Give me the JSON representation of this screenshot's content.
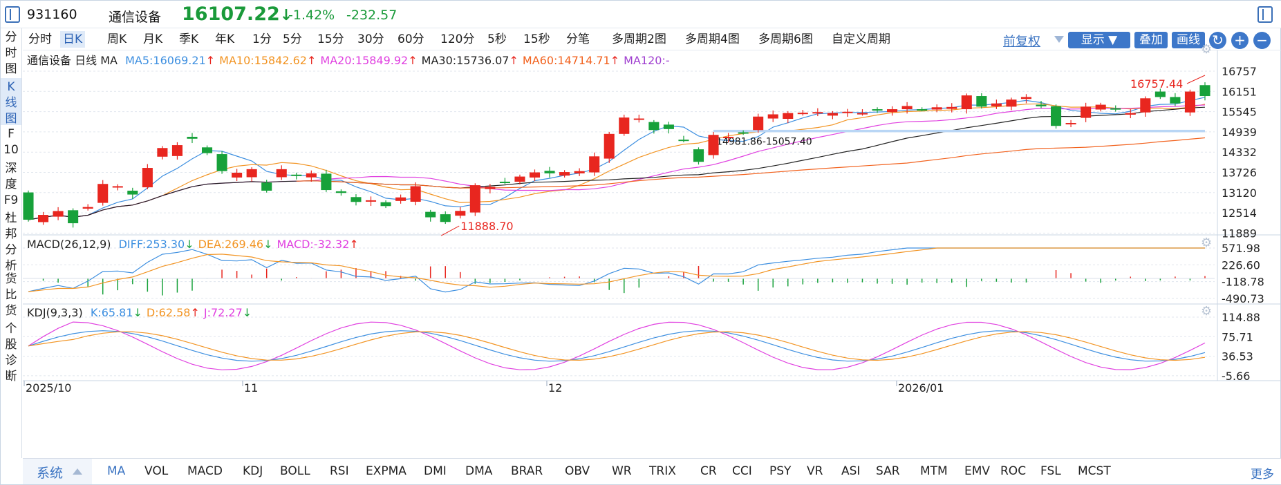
{
  "header": {
    "code": "931160",
    "name": "通信设备",
    "price": "16107.22",
    "price_arrow": "↓",
    "pct_change": "-1.42%",
    "change": "-232.57"
  },
  "side_tabs": [
    {
      "label": "分\n时\n图",
      "active": false
    },
    {
      "label": "K\n线\n图",
      "active": true
    },
    {
      "label": "F\n10",
      "active": false
    },
    {
      "label": "深\n度\nF9",
      "active": false
    },
    {
      "label": "杜\n邦\n分\n析",
      "active": false
    },
    {
      "label": "货\n比\n货",
      "active": false
    },
    {
      "label": "个\n股\n诊\n断",
      "active": false
    }
  ],
  "periods": [
    "分时",
    "日K",
    "周K",
    "月K",
    "季K",
    "年K",
    "1分",
    "5分",
    "15分",
    "30分",
    "60分",
    "120分",
    "5秒",
    "15秒",
    "分笔",
    "多周期2图",
    "多周期4图",
    "多周期6图",
    "自定义周期"
  ],
  "active_period": "日K",
  "toolbar": {
    "fuquan": "前复权",
    "display": "显示",
    "overlay": "叠加",
    "draw": "画线"
  },
  "main_panel": {
    "title_name": "通信设备",
    "title_period": "日线",
    "title_ind": "MA",
    "ma": [
      {
        "label": "MA5:16069.21",
        "arrow": "↑",
        "color": "#3d8fe0"
      },
      {
        "label": "MA10:15842.62",
        "arrow": "↑",
        "color": "#f29423"
      },
      {
        "label": "MA20:15849.92",
        "arrow": "↑",
        "color": "#e040e0"
      },
      {
        "label": "MA30:15736.07",
        "arrow": "↑",
        "color": "#222222"
      },
      {
        "label": "MA60:14714.71",
        "arrow": "↑",
        "color": "#f2621e"
      },
      {
        "label": "MA120:-",
        "arrow": "",
        "color": "#a040d0"
      }
    ],
    "y_ticks": [
      "16757",
      "16151",
      "15545",
      "14939",
      "14332",
      "13726",
      "13120",
      "12514",
      "11889"
    ],
    "annot_high": "16757.44",
    "annot_low": "11888.70",
    "annot_range": "14981.86-15057.40"
  },
  "macd_panel": {
    "title": "MACD(26,12,9)",
    "items": [
      {
        "label": "DIFF:253.30",
        "arrow": "↓",
        "color": "#3d8fe0"
      },
      {
        "label": "DEA:269.46",
        "arrow": "↓",
        "color": "#f29423"
      },
      {
        "label": "MACD:-32.32",
        "arrow": "↑",
        "color": "#e040e0"
      }
    ],
    "y_ticks": [
      "571.98",
      "226.60",
      "-118.78",
      "-490.73"
    ]
  },
  "kdj_panel": {
    "title": "KDJ(9,3,3)",
    "items": [
      {
        "label": "K:65.81",
        "arrow": "↓",
        "color": "#3d8fe0"
      },
      {
        "label": "D:62.58",
        "arrow": "↑",
        "color": "#f29423"
      },
      {
        "label": "J:72.27",
        "arrow": "↓",
        "color": "#e040e0"
      }
    ],
    "y_ticks": [
      "114.88",
      "75.71",
      "36.53",
      "-5.66"
    ]
  },
  "x_labels": [
    "2025/10",
    "11",
    "12",
    "2026/01"
  ],
  "indicators": [
    "MA",
    "VOL",
    "MACD",
    "KDJ",
    "BOLL",
    "RSI",
    "EXPMA",
    "DMI",
    "DMA",
    "BRAR",
    "OBV",
    "WR",
    "TRIX",
    "CR",
    "CCI",
    "PSY",
    "VR",
    "ASI",
    "SAR",
    "MTM",
    "EMV",
    "ROC",
    "FSL",
    "MCST"
  ],
  "active_indicator": "MA",
  "system_label": "系统",
  "more_label": "更多",
  "colors": {
    "up": "#e8261f",
    "down": "#17a13a",
    "accent": "#3d77c9"
  },
  "chart_data": {
    "type": "candlestick",
    "x_axis_labels": [
      "2025/10",
      "11",
      "12",
      "2026/01"
    ],
    "y_range": [
      11889,
      16757
    ],
    "candles_open_close": [
      [
        13105,
        12255
      ],
      [
        12180,
        12405
      ],
      [
        12350,
        12525
      ],
      [
        12550,
        12145
      ],
      [
        12600,
        12650
      ],
      [
        12780,
        13370
      ],
      [
        13280,
        13300
      ],
      [
        13160,
        13040
      ],
      [
        13265,
        13870
      ],
      [
        14220,
        14490
      ],
      [
        14240,
        14580
      ],
      [
        14840,
        14780
      ],
      [
        14510,
        14330
      ],
      [
        14300,
        13770
      ],
      [
        13570,
        13720
      ],
      [
        13580,
        13830
      ],
      [
        13410,
        13160
      ],
      [
        13580,
        13830
      ],
      [
        13660,
        13620
      ],
      [
        13575,
        13700
      ],
      [
        13690,
        13180
      ],
      [
        13140,
        13090
      ],
      [
        12960,
        12810
      ],
      [
        12820,
        12860
      ],
      [
        12800,
        12680
      ],
      [
        12840,
        12950
      ],
      [
        12815,
        13300
      ],
      [
        12500,
        12330
      ],
      [
        12425,
        12185
      ],
      [
        12380,
        12530
      ],
      [
        12480,
        13330
      ],
      [
        13210,
        13280
      ],
      [
        13440,
        13420
      ],
      [
        13440,
        13600
      ],
      [
        13570,
        13730
      ],
      [
        13780,
        13700
      ],
      [
        13630,
        13740
      ],
      [
        13700,
        13770
      ],
      [
        13730,
        14230
      ],
      [
        14160,
        14930
      ],
      [
        14930,
        15440
      ],
      [
        15370,
        15410
      ],
      [
        15300,
        15050
      ],
      [
        15220,
        15080
      ],
      [
        14750,
        14730
      ],
      [
        14450,
        14060
      ],
      [
        14270,
        14900
      ],
      [
        14800,
        14840
      ],
      [
        14980,
        14960
      ],
      [
        15050,
        15470
      ],
      [
        15410,
        15540
      ],
      [
        15400,
        15580
      ],
      [
        15560,
        15590
      ],
      [
        15570,
        15610
      ],
      [
        15500,
        15580
      ],
      [
        15600,
        15620
      ],
      [
        15560,
        15580
      ],
      [
        15700,
        15670
      ],
      [
        15610,
        15700
      ],
      [
        15700,
        15800
      ],
      [
        15700,
        15690
      ],
      [
        15690,
        15760
      ],
      [
        15710,
        15770
      ],
      [
        15700,
        16130
      ],
      [
        16110,
        15780
      ],
      [
        15790,
        15880
      ],
      [
        15780,
        16000
      ],
      [
        16020,
        16080
      ],
      [
        15840,
        15790
      ],
      [
        15790,
        15180
      ],
      [
        15250,
        15270
      ],
      [
        15430,
        15780
      ],
      [
        15690,
        15840
      ],
      [
        15730,
        15710
      ],
      [
        15530,
        15580
      ],
      [
        15600,
        16040
      ],
      [
        16250,
        16080
      ],
      [
        16080,
        15880
      ],
      [
        15600,
        16250
      ],
      [
        16450,
        16110
      ]
    ]
  }
}
